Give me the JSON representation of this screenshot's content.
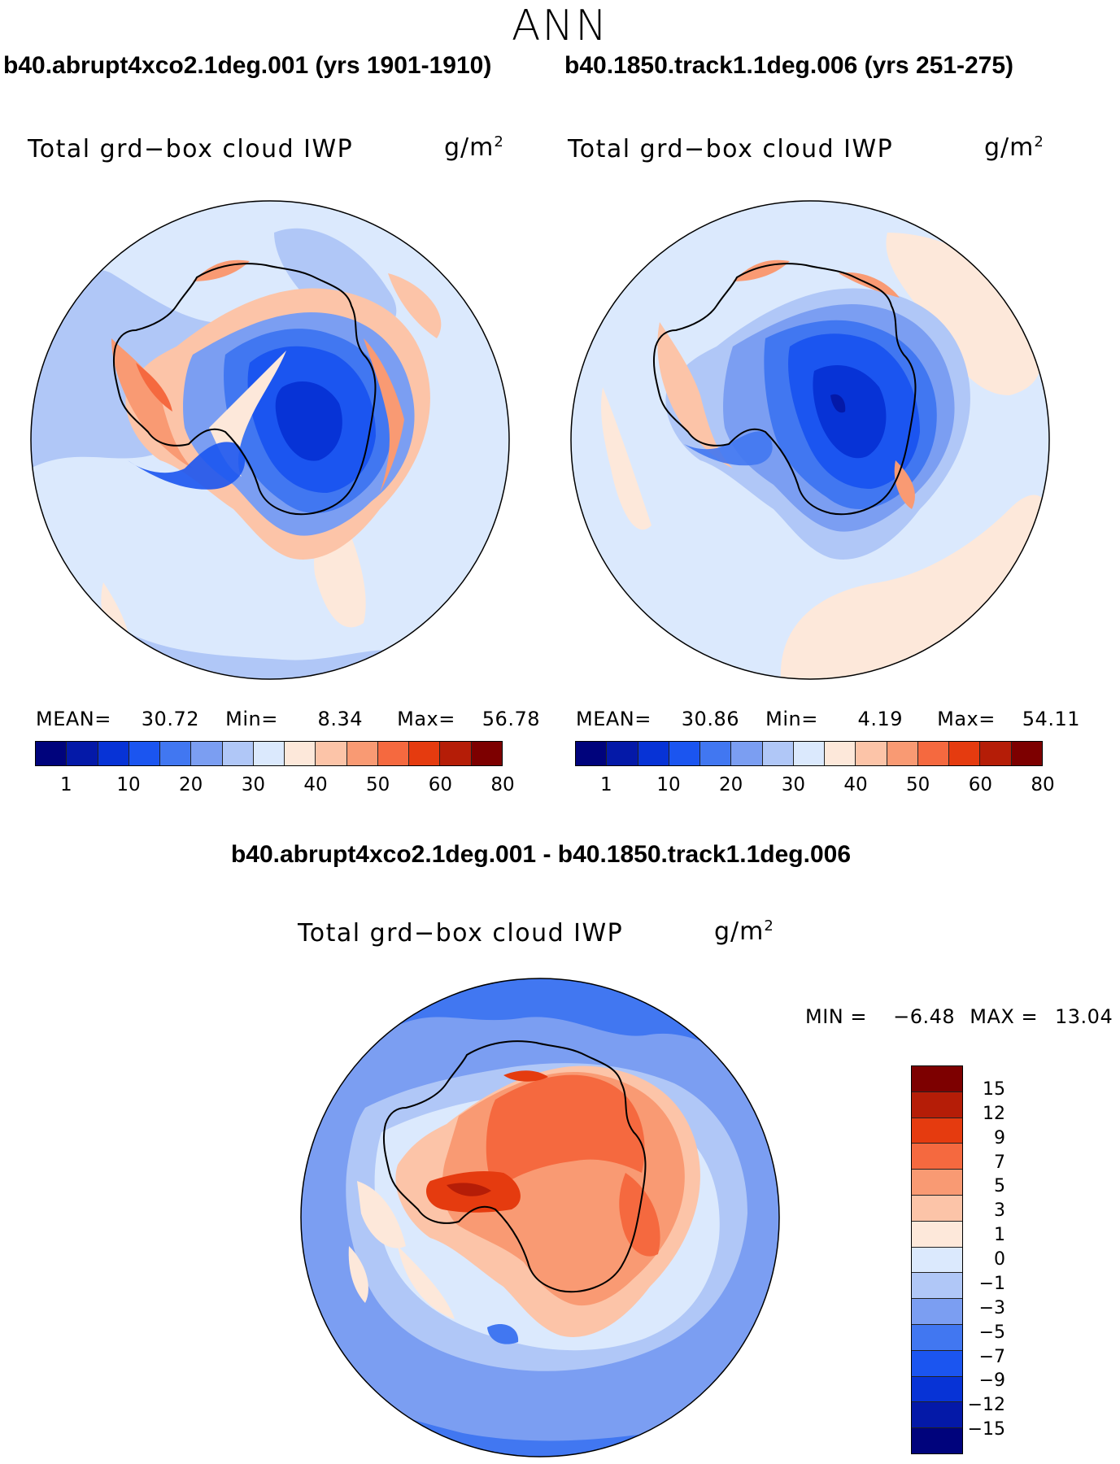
{
  "season": "ANN",
  "panels": [
    {
      "case_title": "b40.abrupt4xco2.1deg.001 (yrs 1901-1910)",
      "variable": "Total grd−box cloud IWP",
      "units_base": "g/m",
      "units_exp": "2",
      "mean_label": "MEAN=",
      "mean_value": "30.72",
      "min_label": "Min=",
      "min_value": "8.34",
      "max_label": "Max=",
      "max_value": "56.78"
    },
    {
      "case_title": "b40.1850.track1.1deg.006 (yrs 251-275)",
      "variable": "Total grd−box cloud IWP",
      "units_base": "g/m",
      "units_exp": "2",
      "mean_label": "MEAN=",
      "mean_value": "30.86",
      "min_label": "Min=",
      "min_value": "4.19",
      "max_label": "Max=",
      "max_value": "54.11"
    }
  ],
  "abs_colorbar": {
    "colors": [
      "#00037c",
      "#0419a8",
      "#0733d6",
      "#1b55f0",
      "#4177f1",
      "#7b9ef2",
      "#b0c7f7",
      "#dbe9fd",
      "#fde8da",
      "#fcc4a8",
      "#f99a73",
      "#f5693f",
      "#e53b0f",
      "#b51d07",
      "#7d0000"
    ],
    "ticks": [
      "1",
      "10",
      "20",
      "30",
      "40",
      "50",
      "60",
      "80"
    ]
  },
  "diff": {
    "title": "b40.abrupt4xco2.1deg.001 - b40.1850.track1.1deg.006",
    "variable": "Total grd−box cloud IWP",
    "units_base": "g/m",
    "units_exp": "2",
    "min_label": "MIN =",
    "min_value": "−6.48",
    "max_label": "MAX =",
    "max_value": "13.04",
    "colorbar": {
      "colors": [
        "#7d0000",
        "#b51d07",
        "#e53b0f",
        "#f5693f",
        "#f99a73",
        "#fcc4a8",
        "#fde8da",
        "#dbe9fd",
        "#b0c7f7",
        "#7b9ef2",
        "#4177f1",
        "#1b55f0",
        "#0733d6",
        "#0419a8",
        "#00037c"
      ],
      "ticks": [
        "15",
        "12",
        "9",
        "7",
        "5",
        "3",
        "1",
        "0",
        "−1",
        "−3",
        "−5",
        "−7",
        "−9",
        "−12",
        "−15"
      ]
    }
  },
  "chart_data": [
    {
      "type": "heatmap",
      "projection": "south-polar stereographic",
      "title": "b40.abrupt4xco2.1deg.001 (yrs 1901-1910)",
      "variable": "Total grd-box cloud IWP",
      "units": "g/m2",
      "stats": {
        "mean": 30.72,
        "min": 8.34,
        "max": 56.78
      },
      "levels": [
        1,
        5,
        10,
        15,
        20,
        25,
        30,
        35,
        40,
        45,
        50,
        55,
        60,
        70,
        80
      ]
    },
    {
      "type": "heatmap",
      "projection": "south-polar stereographic",
      "title": "b40.1850.track1.1deg.006 (yrs 251-275)",
      "variable": "Total grd-box cloud IWP",
      "units": "g/m2",
      "stats": {
        "mean": 30.86,
        "min": 4.19,
        "max": 54.11
      },
      "levels": [
        1,
        5,
        10,
        15,
        20,
        25,
        30,
        35,
        40,
        45,
        50,
        55,
        60,
        70,
        80
      ]
    },
    {
      "type": "heatmap",
      "projection": "south-polar stereographic",
      "title": "b40.abrupt4xco2.1deg.001 - b40.1850.track1.1deg.006",
      "variable": "Total grd-box cloud IWP",
      "units": "g/m2",
      "stats": {
        "min": -6.48,
        "max": 13.04
      },
      "levels": [
        -15,
        -12,
        -9,
        -7,
        -5,
        -3,
        -1,
        0,
        1,
        3,
        5,
        7,
        9,
        12,
        15
      ]
    }
  ]
}
